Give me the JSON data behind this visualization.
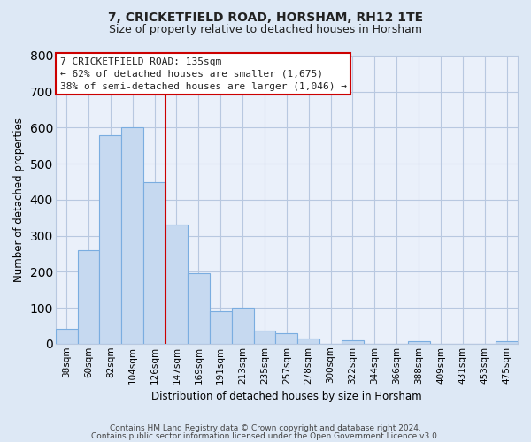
{
  "title": "7, CRICKETFIELD ROAD, HORSHAM, RH12 1TE",
  "subtitle": "Size of property relative to detached houses in Horsham",
  "xlabel": "Distribution of detached houses by size in Horsham",
  "ylabel": "Number of detached properties",
  "bar_labels": [
    "38sqm",
    "60sqm",
    "82sqm",
    "104sqm",
    "126sqm",
    "147sqm",
    "169sqm",
    "191sqm",
    "213sqm",
    "235sqm",
    "257sqm",
    "278sqm",
    "300sqm",
    "322sqm",
    "344sqm",
    "366sqm",
    "388sqm",
    "409sqm",
    "431sqm",
    "453sqm",
    "475sqm"
  ],
  "bar_values": [
    40,
    260,
    580,
    600,
    450,
    330,
    195,
    90,
    100,
    37,
    30,
    15,
    0,
    10,
    0,
    0,
    7,
    0,
    0,
    0,
    7
  ],
  "bar_color": "#c6d9f0",
  "bar_edge_color": "#7aade0",
  "vline_x_index": 4,
  "vline_color": "#cc0000",
  "ylim": [
    0,
    800
  ],
  "yticks": [
    0,
    100,
    200,
    300,
    400,
    500,
    600,
    700,
    800
  ],
  "annotation_line1": "7 CRICKETFIELD ROAD: 135sqm",
  "annotation_line2": "← 62% of detached houses are smaller (1,675)",
  "annotation_line3": "38% of semi-detached houses are larger (1,046) →",
  "footer_line1": "Contains HM Land Registry data © Crown copyright and database right 2024.",
  "footer_line2": "Contains public sector information licensed under the Open Government Licence v3.0.",
  "bg_color": "#dde8f5",
  "plot_bg_color": "#eaf0fa",
  "grid_color": "#b8c8e0",
  "title_fontsize": 10,
  "subtitle_fontsize": 9,
  "ylabel_fontsize": 8.5,
  "xlabel_fontsize": 8.5,
  "tick_fontsize": 7.5,
  "ann_fontsize": 8,
  "footer_fontsize": 6.5
}
